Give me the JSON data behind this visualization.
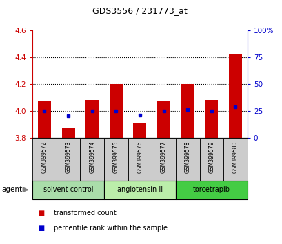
{
  "title": "GDS3556 / 231773_at",
  "samples": [
    "GSM399572",
    "GSM399573",
    "GSM399574",
    "GSM399575",
    "GSM399576",
    "GSM399577",
    "GSM399578",
    "GSM399579",
    "GSM399580"
  ],
  "red_bar_tops": [
    4.07,
    3.87,
    4.08,
    4.2,
    3.91,
    4.07,
    4.2,
    4.08,
    4.42
  ],
  "blue_markers": [
    4.0,
    3.965,
    4.0,
    4.0,
    3.972,
    4.0,
    4.01,
    4.0,
    4.03
  ],
  "bar_bottom": 3.8,
  "ylim": [
    3.8,
    4.6
  ],
  "yticks_left": [
    3.8,
    4.0,
    4.2,
    4.4,
    4.6
  ],
  "yticks_right": [
    0,
    25,
    50,
    75,
    100
  ],
  "groups": [
    {
      "label": "solvent control",
      "indices": [
        0,
        1,
        2
      ],
      "color": "#aaddaa"
    },
    {
      "label": "angiotensin II",
      "indices": [
        3,
        4,
        5
      ],
      "color": "#bbeeaa"
    },
    {
      "label": "torcetrapib",
      "indices": [
        6,
        7,
        8
      ],
      "color": "#44cc44"
    }
  ],
  "red_color": "#cc0000",
  "blue_color": "#0000cc",
  "axis_bg": "#ffffff",
  "sample_bg": "#cccccc",
  "legend_red": "transformed count",
  "legend_blue": "percentile rank within the sample"
}
